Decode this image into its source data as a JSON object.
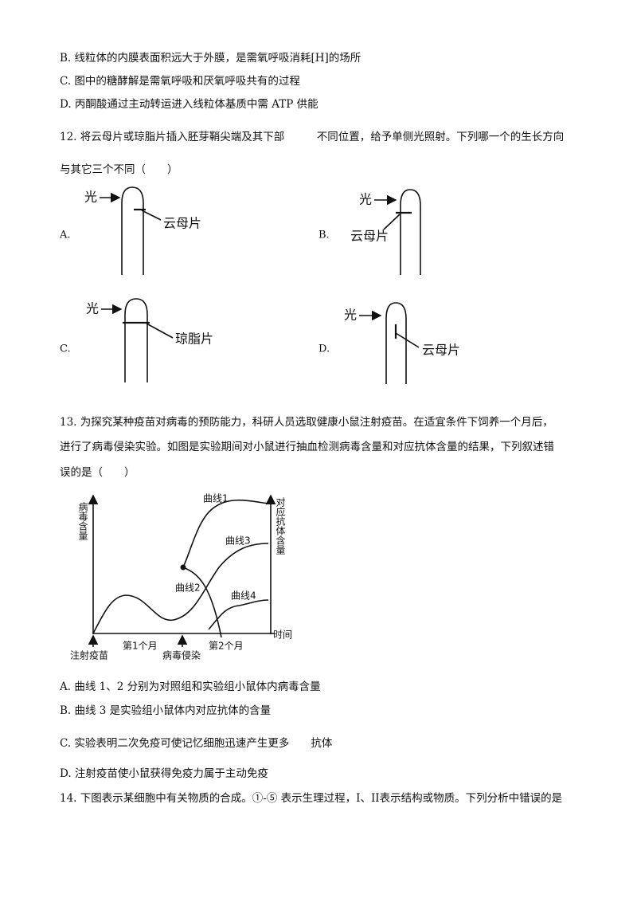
{
  "q11_options": [
    "B. 线粒体的内膜表面积远大于外膜，是需氧呼吸消耗[H]的场所",
    "C. 图中的糖酵解是需氧呼吸和厌氧呼吸共有的过程",
    "D. 丙酮酸通过主动转运进入线粒体基质中需 ATP 供能"
  ],
  "q12": {
    "stem": [
      "12. 将云母片或琼脂片插入胚芽鞘尖端及其下部　　　不同位置，给予单侧光照射。下列哪一个的生长方向",
      "与其它三个不同（　　）"
    ],
    "figures": [
      {
        "letter": "A.",
        "light": "光",
        "label": "云母片"
      },
      {
        "letter": "B.",
        "light": "光",
        "label": "云母片"
      },
      {
        "letter": "C.",
        "light": "光",
        "label": "琼脂片"
      },
      {
        "letter": "D.",
        "light": "光",
        "label": "云母片"
      }
    ]
  },
  "q13": {
    "stem": [
      "13. 为探究某种疫苗对病毒的预防能力，科研人员选取健康小鼠注射疫苗。在适宜条件下饲养一个月后，",
      "进行了病毒侵染实验。如图是实验期间对小鼠进行抽血检测病毒含量和对应抗体含量的结果，下列叙述错",
      "误的是（　　）"
    ],
    "graph": {
      "y_axis_left": "病毒含量",
      "y_axis_right": "对应抗体含量",
      "x_axis": "时间",
      "curves": [
        "曲线1",
        "曲线2",
        "曲线3",
        "曲线4"
      ],
      "x_labels": [
        "第1个月",
        "第2个月"
      ],
      "events": [
        "注射疫苗",
        "病毒侵染"
      ]
    },
    "options": [
      "A. 曲线 1、2 分别为对照组和实验组小鼠体内病毒含量",
      "B. 曲线 3 是实验组小鼠体内对应抗体的含量",
      "C. 实验表明二次免疫可使记忆细胞迅速产生更多　　抗体",
      "D. 注射疫苗使小鼠获得免疫力属于主动免疫"
    ]
  },
  "q14": {
    "stem": "14. 下图表示某细胞中有关物质的合成。①-⑤ 表示生理过程，I、II表示结构或物质。下列分析中错误的是"
  }
}
